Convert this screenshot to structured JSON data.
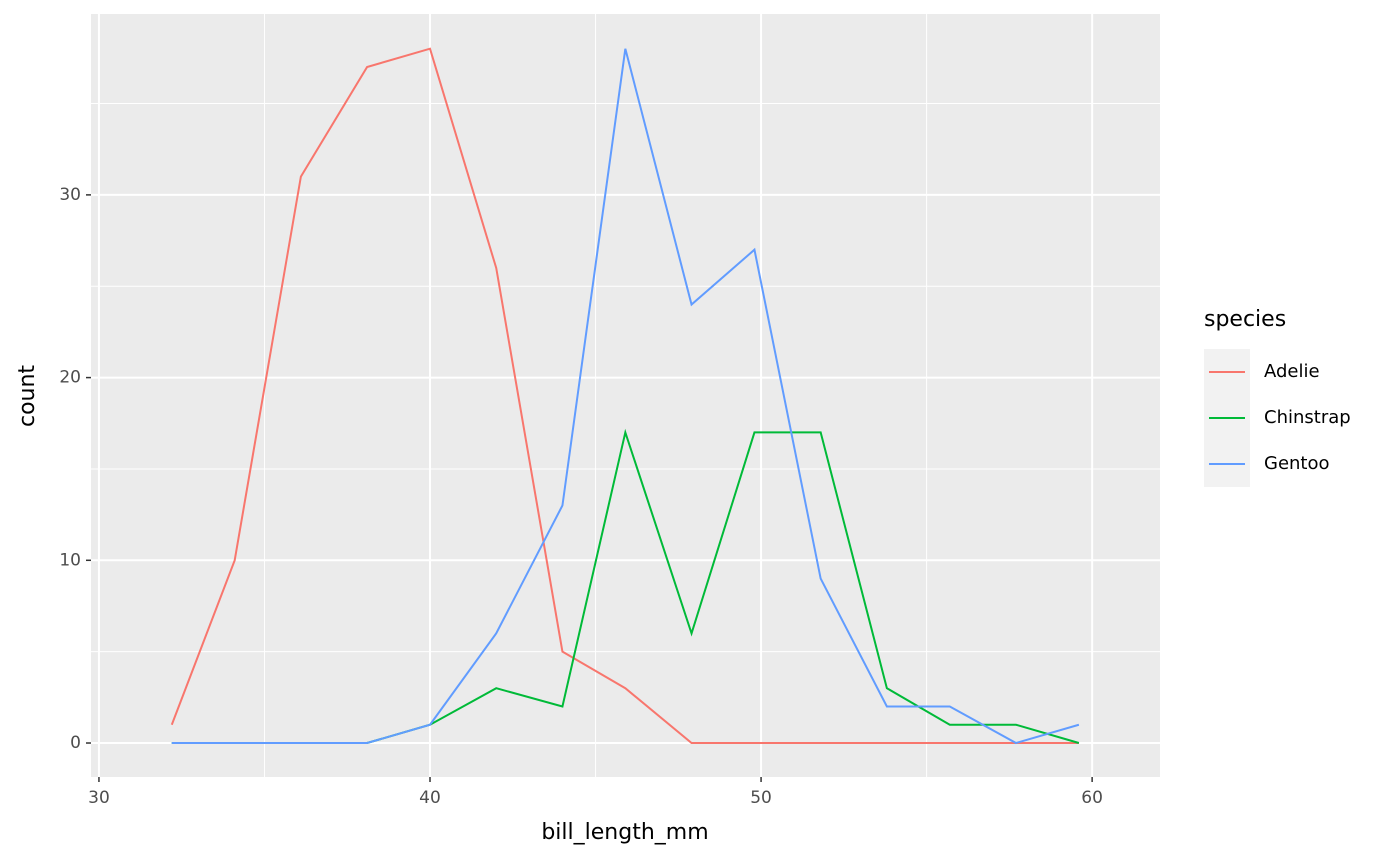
{
  "chart_data": {
    "type": "line",
    "x_label": "bill_length_mm",
    "y_label": "count",
    "x": [
      32.2,
      34.1,
      36.1,
      38.1,
      40.0,
      42.0,
      44.0,
      45.9,
      47.9,
      49.8,
      51.8,
      53.8,
      55.7,
      57.7,
      59.6
    ],
    "series": [
      {
        "name": "Adelie",
        "color": "#F8766D",
        "values": [
          1,
          10,
          31,
          37,
          38,
          26,
          5,
          3,
          0,
          0,
          0,
          0,
          0,
          0,
          0
        ]
      },
      {
        "name": "Chinstrap",
        "color": "#00BA38",
        "values": [
          0,
          0,
          0,
          0,
          1,
          3,
          2,
          17,
          6,
          17,
          17,
          3,
          1,
          1,
          0
        ]
      },
      {
        "name": "Gentoo",
        "color": "#619CFF",
        "values": [
          0,
          0,
          0,
          0,
          1,
          6,
          13,
          38,
          24,
          27,
          9,
          2,
          2,
          0,
          1
        ]
      }
    ],
    "legend_title": "species",
    "legend_position": "right",
    "xlim": [
      29.76,
      62.05
    ],
    "xticks": [
      30,
      40,
      50,
      60
    ],
    "x_minor_grid": [
      35,
      45,
      55
    ],
    "ylim": [
      -1.86,
      39.9
    ],
    "yticks": [
      0,
      10,
      20,
      30
    ],
    "y_minor_grid": [
      5,
      15,
      25,
      35
    ],
    "grid": true,
    "panel_color": "#EBEBEB"
  }
}
